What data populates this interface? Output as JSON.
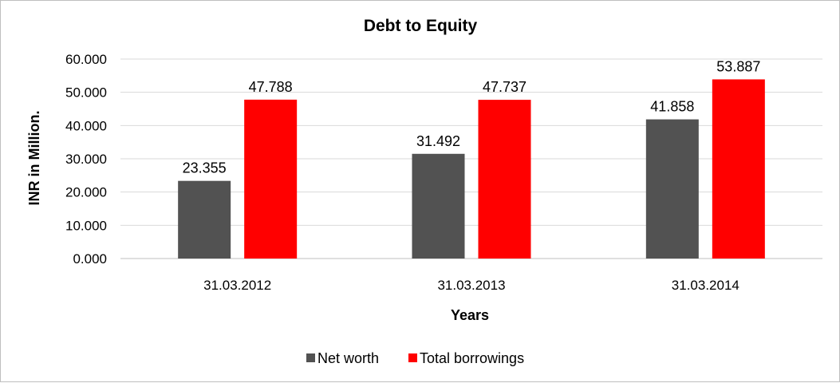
{
  "chart_data": {
    "type": "bar",
    "title": "Debt to Equity",
    "xlabel": "Years",
    "ylabel": "INR in Million.",
    "categories": [
      "31.03.2012",
      "31.03.2013",
      "31.03.2014"
    ],
    "ylim": [
      0,
      60
    ],
    "yticks": [
      0,
      10,
      20,
      30,
      40,
      50,
      60
    ],
    "ytick_labels": [
      "0.000",
      "10.000",
      "20.000",
      "30.000",
      "40.000",
      "50.000",
      "60.000"
    ],
    "grid": true,
    "legend_position": "bottom",
    "series": [
      {
        "name": "Net worth",
        "color": "#525252",
        "values": [
          23.355,
          31.492,
          41.858
        ],
        "labels": [
          "23.355",
          "31.492",
          "41.858"
        ]
      },
      {
        "name": "Total borrowings",
        "color": "#ff0000",
        "values": [
          47.788,
          47.737,
          53.887
        ],
        "labels": [
          "47.788",
          "47.737",
          "53.887"
        ]
      }
    ]
  }
}
